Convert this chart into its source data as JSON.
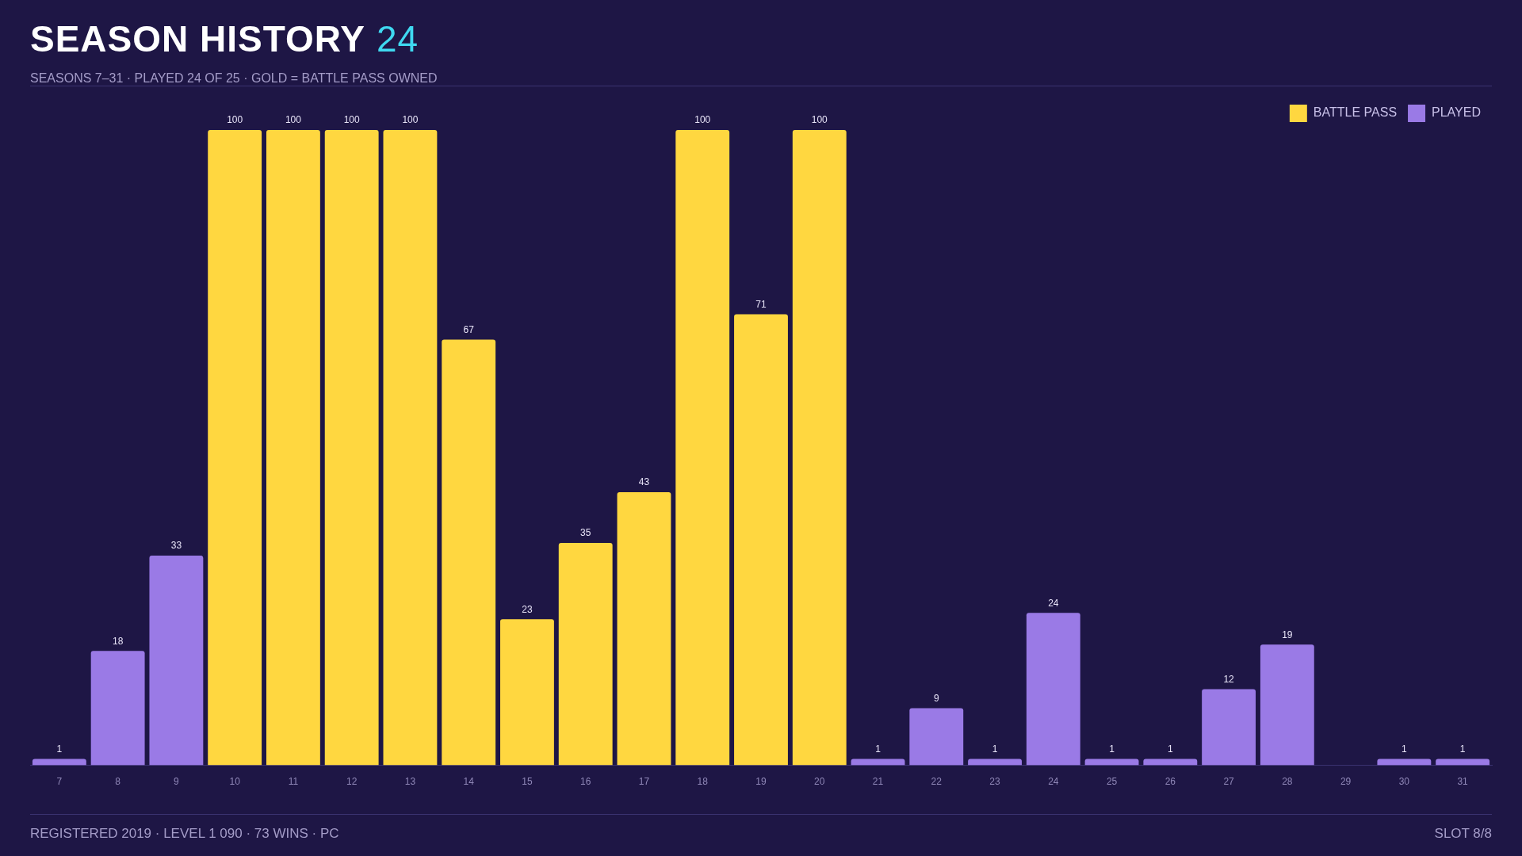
{
  "chart_data": {
    "type": "bar",
    "title": "SEASON HISTORY",
    "subtitle": "SEASONS 7–31 · PLAYED 24 OF 25 · GOLD = BATTLE PASS OWNED",
    "annotations": [
      "24",
      "REGISTERED 2019 · LEVEL 1 090 · 73 WINS · PC",
      "SLOT 8/8"
    ],
    "categories": [
      "7",
      "8",
      "9",
      "10",
      "11",
      "12",
      "13",
      "14",
      "15",
      "16",
      "17",
      "18",
      "19",
      "20",
      "21",
      "22",
      "23",
      "24",
      "25",
      "26",
      "27",
      "28",
      "29",
      "30",
      "31"
    ],
    "series": [
      {
        "name": "BATTLE PASS",
        "color": "#ffd740",
        "values": [
          null,
          null,
          null,
          100,
          100,
          100,
          100,
          67,
          23,
          35,
          43,
          100,
          71,
          100,
          null,
          null,
          null,
          null,
          null,
          null,
          null,
          null,
          null,
          null,
          null
        ]
      },
      {
        "name": "PLAYED",
        "color": "#9a7ae6",
        "values": [
          1,
          18,
          33,
          null,
          null,
          null,
          null,
          null,
          null,
          null,
          null,
          null,
          null,
          null,
          1,
          9,
          1,
          24,
          1,
          1,
          12,
          19,
          0,
          1,
          1
        ],
        "value_labels": [
          "1",
          "18",
          "33",
          null,
          null,
          null,
          null,
          null,
          null,
          null,
          null,
          null,
          null,
          null,
          "1",
          "9",
          "1",
          "24",
          "1",
          "1",
          "12",
          "19",
          null,
          "1",
          "1"
        ]
      }
    ],
    "ylim": [
      0,
      100
    ],
    "data_labels": true,
    "grid": false,
    "legend": "top right",
    "tick_labels": "x"
  }
}
